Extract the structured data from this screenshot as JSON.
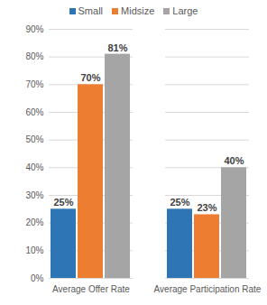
{
  "chart_data": {
    "type": "bar",
    "categories": [
      "Average Offer Rate",
      "Average Participation Rate"
    ],
    "series": [
      {
        "name": "Small",
        "color": "#2e75b6",
        "values": [
          25,
          25
        ],
        "value_labels": [
          "25%",
          "25%"
        ]
      },
      {
        "name": "Midsize",
        "color": "#ed7d31",
        "values": [
          70,
          23
        ],
        "value_labels": [
          "70%",
          "23%"
        ]
      },
      {
        "name": "Large",
        "color": "#a5a5a5",
        "values": [
          81,
          40
        ],
        "value_labels": [
          "81%",
          "40%"
        ]
      }
    ],
    "ylim": [
      0,
      90
    ],
    "yticks": [
      {
        "value": 0,
        "label": "0%"
      },
      {
        "value": 10,
        "label": "10%"
      },
      {
        "value": 20,
        "label": "20%"
      },
      {
        "value": 30,
        "label": "30%"
      },
      {
        "value": 40,
        "label": "40%"
      },
      {
        "value": 50,
        "label": "50%"
      },
      {
        "value": 60,
        "label": "60%"
      },
      {
        "value": 70,
        "label": "70%"
      },
      {
        "value": 80,
        "label": "80%"
      },
      {
        "value": 90,
        "label": "90%"
      }
    ],
    "grid": true,
    "legend": "top",
    "data_labels": true
  }
}
